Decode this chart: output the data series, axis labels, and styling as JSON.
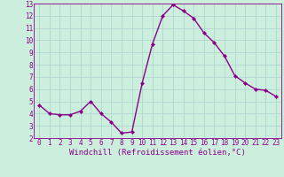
{
  "hours": [
    0,
    1,
    2,
    3,
    4,
    5,
    6,
    7,
    8,
    9,
    10,
    11,
    12,
    13,
    14,
    15,
    16,
    17,
    18,
    19,
    20,
    21,
    22,
    23
  ],
  "values": [
    4.7,
    4.0,
    3.9,
    3.9,
    4.2,
    5.0,
    4.0,
    3.3,
    2.4,
    2.5,
    6.5,
    9.7,
    12.0,
    12.9,
    12.4,
    11.8,
    10.6,
    9.8,
    8.7,
    7.1,
    6.5,
    6.0,
    5.9,
    5.4
  ],
  "line_color": "#8b008b",
  "marker": "D",
  "marker_size": 2.2,
  "bg_color": "#cceedd",
  "grid_color": "#b0d8d0",
  "xlabel": "Windchill (Refroidissement éolien,°C)",
  "ylim": [
    2,
    13
  ],
  "xlim": [
    -0.5,
    23.5
  ],
  "yticks": [
    2,
    3,
    4,
    5,
    6,
    7,
    8,
    9,
    10,
    11,
    12,
    13
  ],
  "xticks": [
    0,
    1,
    2,
    3,
    4,
    5,
    6,
    7,
    8,
    9,
    10,
    11,
    12,
    13,
    14,
    15,
    16,
    17,
    18,
    19,
    20,
    21,
    22,
    23
  ],
  "tick_color": "#8b008b",
  "tick_fontsize": 5.5,
  "xlabel_fontsize": 6.5,
  "linewidth": 1.0,
  "spine_color": "#8b008b"
}
